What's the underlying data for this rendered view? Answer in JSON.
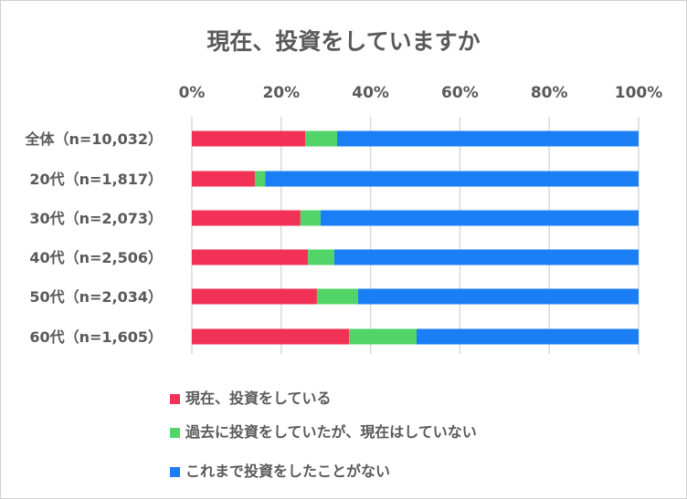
{
  "chart_data": {
    "type": "bar",
    "orientation": "horizontal",
    "stacked": "percent",
    "title": "現在、投資をしていますか",
    "categories": [
      "全体（n=10,032）",
      "20代（n=1,817）",
      "30代（n=2,073）",
      "40代（n=2,506）",
      "50代（n=2,034）",
      "60代（n=1,605）"
    ],
    "series": [
      {
        "name": "現在、投資をしている",
        "color": "#F23157",
        "values": [
          25.4,
          14.1,
          24.3,
          26.0,
          28.0,
          35.2
        ]
      },
      {
        "name": "過去に投資をしていたが、現在はしていない",
        "color": "#52D468",
        "values": [
          7.1,
          2.3,
          4.5,
          5.9,
          9.2,
          15.1
        ]
      },
      {
        "name": "これまで投資をしたことがない",
        "color": "#1A7EF5",
        "values": [
          67.5,
          83.6,
          71.2,
          68.1,
          62.8,
          49.7
        ]
      }
    ],
    "xlim": [
      0,
      100
    ],
    "xticks": [
      "0%",
      "20%",
      "40%",
      "60%",
      "80%",
      "100%"
    ],
    "xtick_values": [
      0,
      20,
      40,
      60,
      80,
      100
    ],
    "axis_position": "top",
    "grid": true,
    "legend_position": "bottom"
  }
}
